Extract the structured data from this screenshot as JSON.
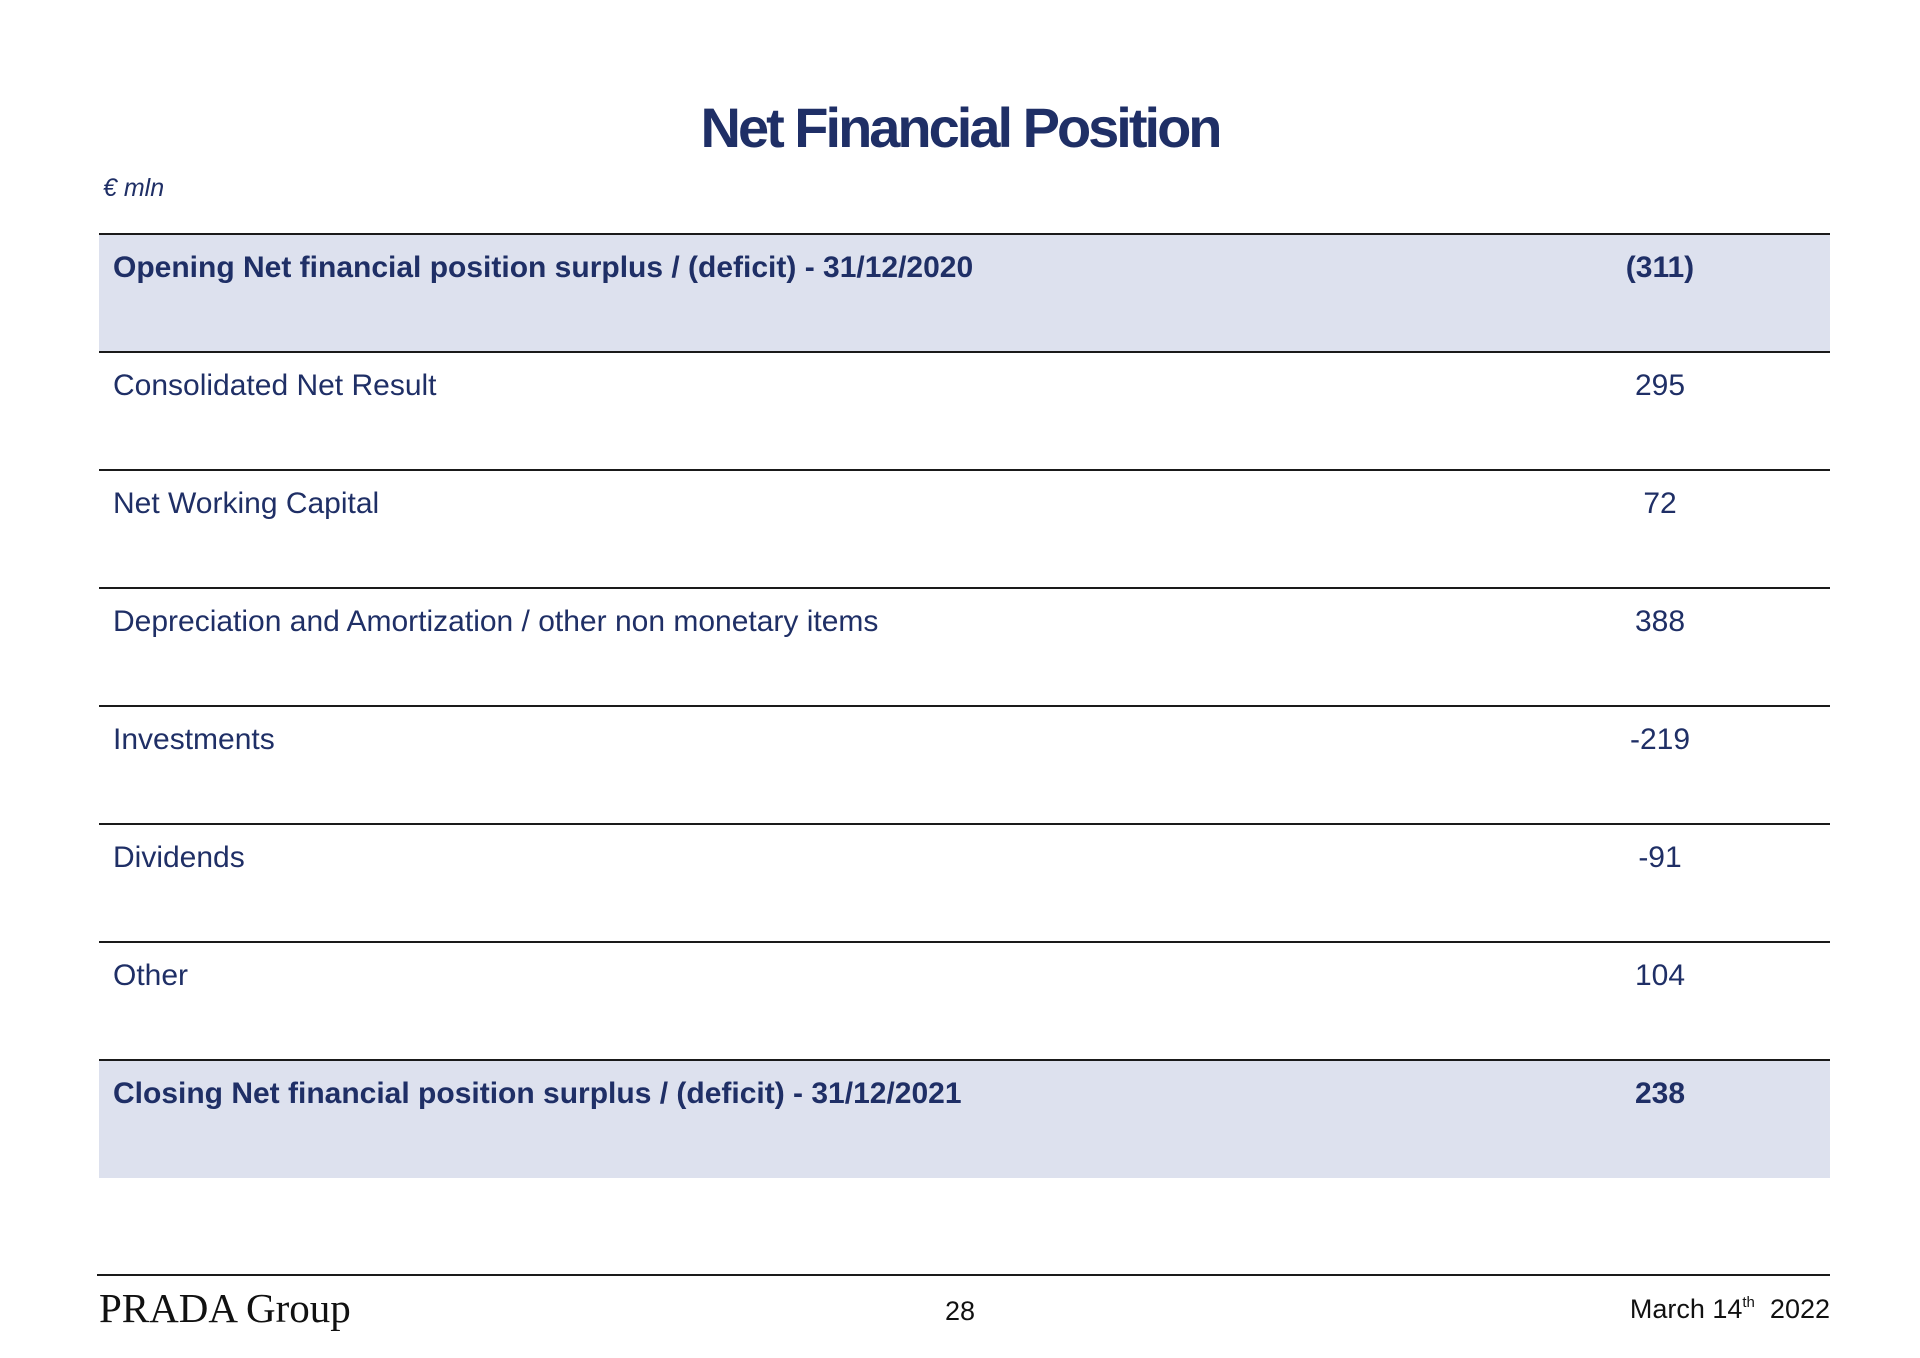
{
  "title": "Net Financial Position",
  "unit": "€ mln",
  "rows": [
    {
      "label": "Opening Net financial position surplus / (deficit) - 31/12/2020",
      "value": "(311)"
    },
    {
      "label": "Consolidated Net Result",
      "value": "295"
    },
    {
      "label": "Net Working Capital",
      "value": "72"
    },
    {
      "label": "Depreciation and Amortization / other non monetary items",
      "value": "388"
    },
    {
      "label": "Investments",
      "value": "-219"
    },
    {
      "label": "Dividends",
      "value": "-91"
    },
    {
      "label": "Other",
      "value": "104"
    },
    {
      "label": "Closing Net financial position surplus / (deficit) - 31/12/2021",
      "value": "238"
    }
  ],
  "colors": {
    "text": "#1f2f66",
    "highlight_row": "#dde1ee",
    "rule": "#1a1a1a"
  },
  "footer": {
    "logo": "PRADA Group",
    "page_number": "28",
    "date_month_day": "March 14",
    "date_suffix": "th",
    "date_year": "2022"
  }
}
